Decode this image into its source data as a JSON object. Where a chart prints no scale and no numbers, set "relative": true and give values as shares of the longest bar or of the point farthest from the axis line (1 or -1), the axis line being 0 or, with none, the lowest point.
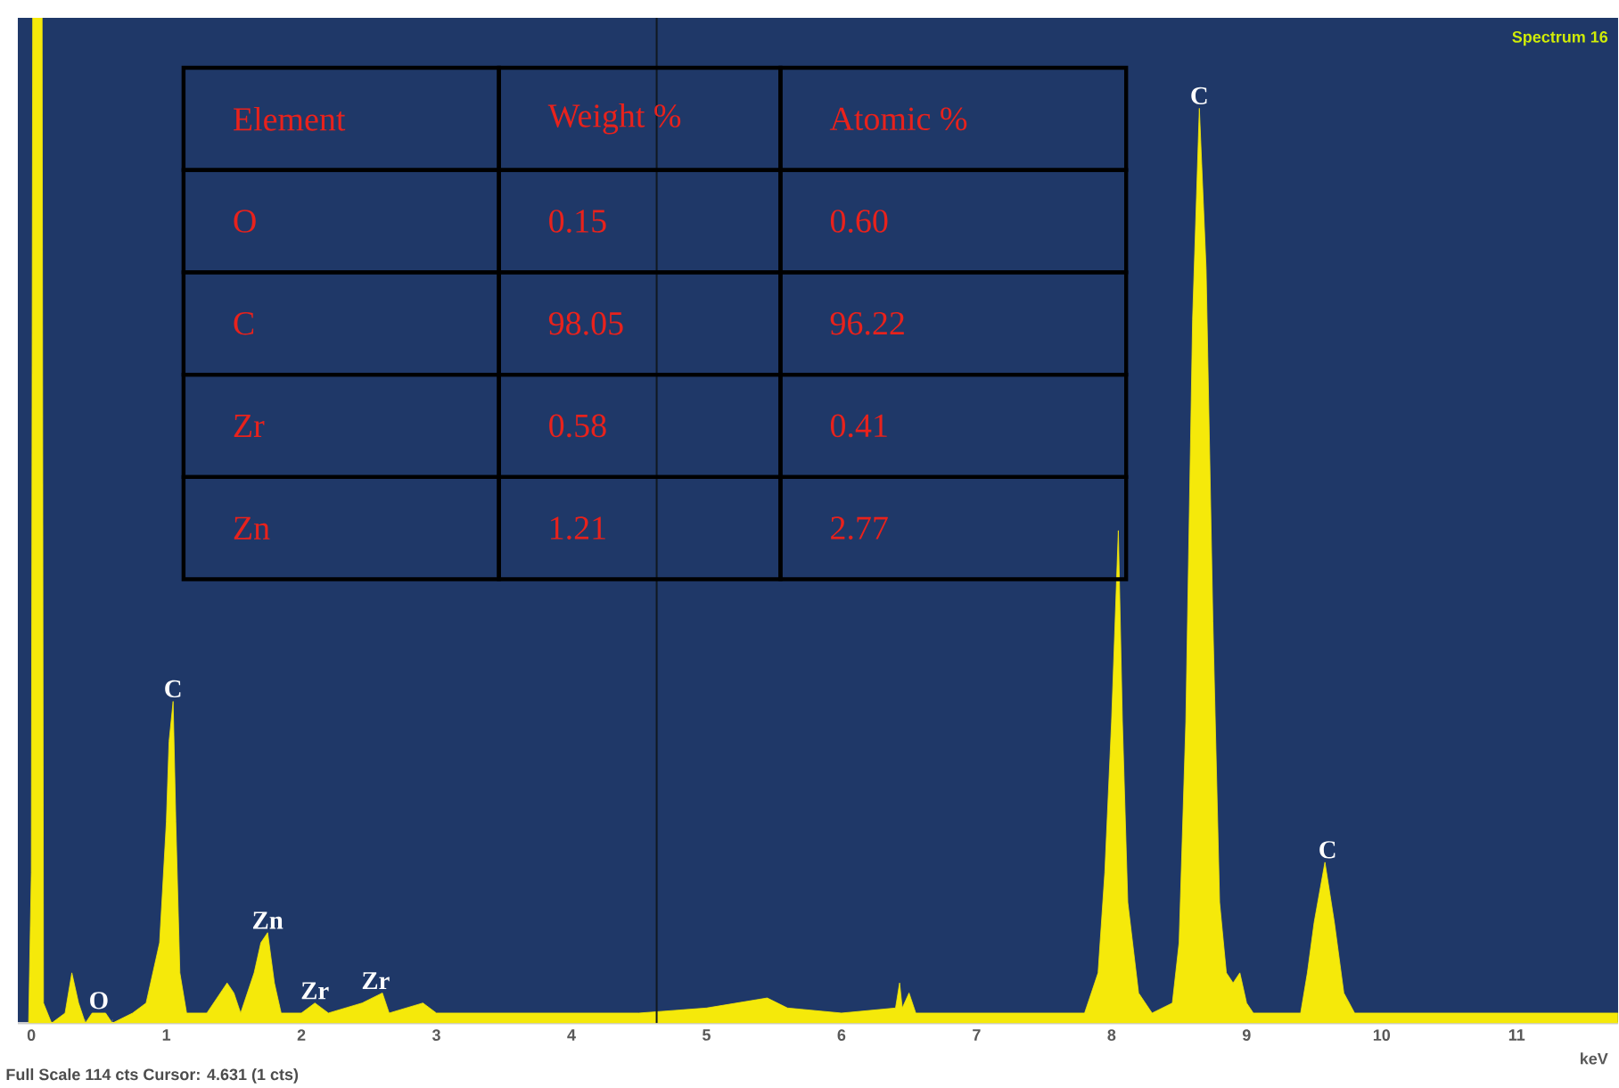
{
  "chart_data": {
    "type": "area",
    "title": "Spectrum 16",
    "xlabel": "keV",
    "relative": true,
    "color": "#f5e90a",
    "xlim": [
      -0.1,
      11.75
    ],
    "xticks": [
      0,
      1,
      2,
      3,
      4,
      5,
      6,
      7,
      8,
      9,
      10,
      11
    ],
    "x": [
      -0.02,
      0.0,
      0.01,
      0.08,
      0.09,
      0.15,
      0.25,
      0.3,
      0.35,
      0.4,
      0.45,
      0.55,
      0.6,
      0.75,
      0.85,
      0.95,
      1.0,
      1.02,
      1.05,
      1.07,
      1.1,
      1.15,
      1.3,
      1.45,
      1.5,
      1.55,
      1.65,
      1.7,
      1.75,
      1.8,
      1.85,
      2.0,
      2.1,
      2.2,
      2.45,
      2.6,
      2.65,
      2.9,
      3.0,
      3.5,
      4.0,
      4.5,
      5.0,
      5.45,
      5.6,
      6.0,
      6.4,
      6.43,
      6.45,
      6.5,
      6.55,
      7.0,
      7.5,
      7.8,
      7.9,
      7.95,
      8.0,
      8.05,
      8.08,
      8.12,
      8.2,
      8.3,
      8.45,
      8.5,
      8.55,
      8.6,
      8.65,
      8.7,
      8.75,
      8.8,
      8.85,
      8.9,
      8.95,
      9.0,
      9.05,
      9.4,
      9.45,
      9.5,
      9.58,
      9.65,
      9.72,
      9.8,
      10.0,
      10.3,
      11.0,
      11.5,
      11.75
    ],
    "values": [
      0,
      0.15,
      1,
      1,
      0.02,
      0,
      0.01,
      0.05,
      0.02,
      0,
      0.01,
      0.01,
      0,
      0.01,
      0.02,
      0.08,
      0.2,
      0.28,
      0.32,
      0.2,
      0.05,
      0.01,
      0.01,
      0.04,
      0.03,
      0.01,
      0.05,
      0.08,
      0.09,
      0.04,
      0.01,
      0.01,
      0.02,
      0.01,
      0.02,
      0.03,
      0.01,
      0.02,
      0.01,
      0.01,
      0.01,
      0.01,
      0.015,
      0.025,
      0.015,
      0.01,
      0.015,
      0.04,
      0.015,
      0.03,
      0.01,
      0.01,
      0.01,
      0.01,
      0.05,
      0.15,
      0.3,
      0.49,
      0.3,
      0.12,
      0.03,
      0.01,
      0.02,
      0.08,
      0.3,
      0.7,
      0.91,
      0.75,
      0.4,
      0.12,
      0.05,
      0.04,
      0.05,
      0.02,
      0.01,
      0.01,
      0.05,
      0.1,
      0.16,
      0.1,
      0.03,
      0.01,
      0.01,
      0.01,
      0.01,
      0.01,
      0.01
    ],
    "ref_lines": [
      {
        "axis": "x",
        "value": 4.631,
        "color": "#101820"
      }
    ],
    "annotations": [
      {
        "text": "C",
        "x": 1.05,
        "y": 0.32
      },
      {
        "text": "Zn",
        "x": 1.75,
        "y": 0.09
      },
      {
        "text": "O",
        "x": 0.5,
        "y": 0.01
      },
      {
        "text": "Zr",
        "x": 2.1,
        "y": 0.02
      },
      {
        "text": "Zr",
        "x": 2.55,
        "y": 0.03
      },
      {
        "text": "C",
        "x": 8.65,
        "y": 0.91
      },
      {
        "text": "C",
        "x": 9.6,
        "y": 0.16
      },
      "Element",
      "Weight %",
      "Atomic %",
      "O",
      "0.15",
      "0.60",
      "C",
      "98.05",
      "96.22",
      "Zr",
      "0.58",
      "0.41",
      "Zn",
      "1.21",
      "2.77",
      "Full Scale 114 cts Cursor: 4.631  (1 cts)"
    ]
  }
}
